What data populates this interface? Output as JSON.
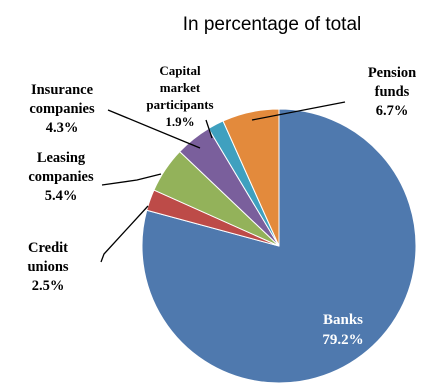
{
  "chart_data": {
    "type": "pie",
    "title": "In percentage of total",
    "slices": [
      {
        "name": "Banks",
        "label_lines": [
          "Banks"
        ],
        "value": 79.2,
        "value_label": "79.2%",
        "color": "#4f79ae"
      },
      {
        "name": "Credit unions",
        "label_lines": [
          "Credit",
          "unions"
        ],
        "value": 2.5,
        "value_label": "2.5%",
        "color": "#bd4b48"
      },
      {
        "name": "Leasing companies",
        "label_lines": [
          "Leasing",
          "companies"
        ],
        "value": 5.4,
        "value_label": "5.4%",
        "color": "#93b25a"
      },
      {
        "name": "Insurance companies",
        "label_lines": [
          "Insurance",
          "companies"
        ],
        "value": 4.3,
        "value_label": "4.3%",
        "color": "#7a5f9c"
      },
      {
        "name": "Capital market participants",
        "label_lines": [
          "Capital",
          "market",
          "participants"
        ],
        "value": 1.9,
        "value_label": "1.9%",
        "color": "#3fa0bf"
      },
      {
        "name": "Pension funds",
        "label_lines": [
          "Pension",
          "funds"
        ],
        "value": 6.7,
        "value_label": "6.7%",
        "color": "#e38a3c"
      }
    ],
    "start_angle": "12 o'clock",
    "direction": "clockwise",
    "legend": "none, labels placed beside slices"
  }
}
